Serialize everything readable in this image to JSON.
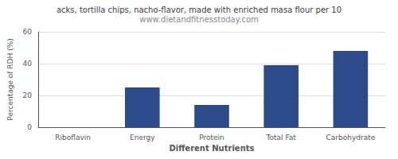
{
  "chart_data": {
    "type": "bar",
    "title": "acks, tortilla chips, nacho-flavor, made with enriched masa flour per 10",
    "subtitle": "www.dietandfitnesstoday.com",
    "categories": [
      "Riboflavin",
      "Energy",
      "Protein",
      "Total Fat",
      "Carbohydrate"
    ],
    "values": [
      0,
      25,
      14,
      39,
      48
    ],
    "color": "#2d4a8a",
    "xlabel": "Different Nutrients",
    "ylabel": "Percentage of RDH (%)",
    "ylim": [
      0,
      60
    ],
    "yticks": [
      0,
      20,
      40,
      60
    ],
    "grid": true
  }
}
